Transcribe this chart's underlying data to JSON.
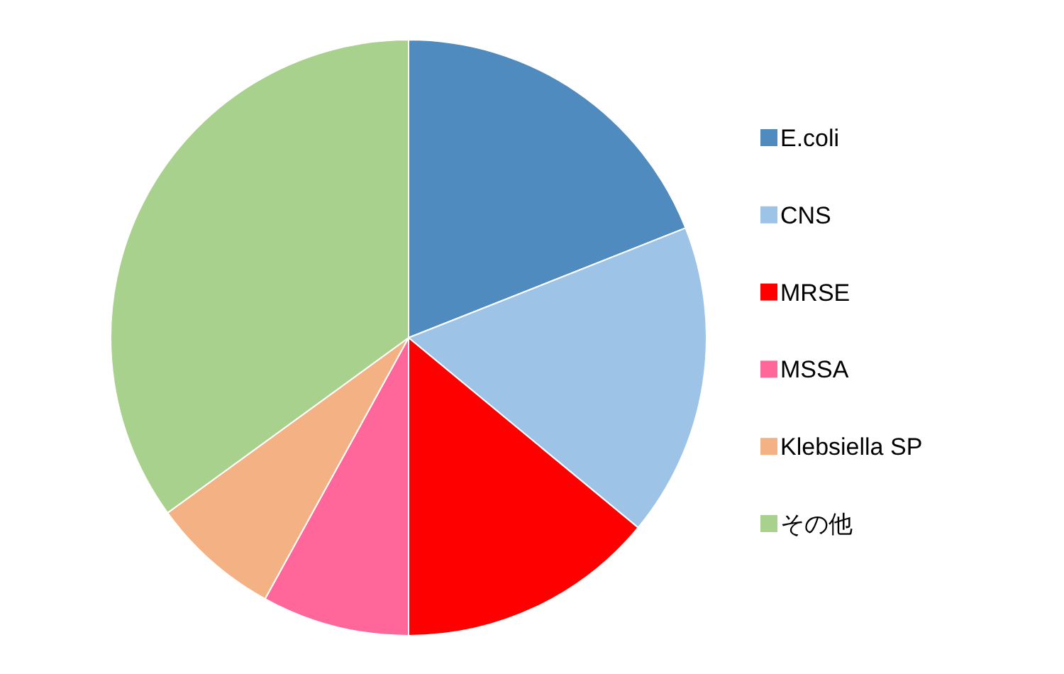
{
  "chart_data": {
    "type": "pie",
    "categories": [
      "E.coli",
      "CNS",
      "MRSE",
      "MSSA",
      "Klebsiella SP",
      "その他"
    ],
    "values": [
      19,
      17,
      14,
      8,
      7,
      35
    ],
    "colors": [
      "#4f8bbf",
      "#9dc3e6",
      "#ff0000",
      "#ff6699",
      "#f4b183",
      "#a9d18e"
    ],
    "legend": "right"
  }
}
